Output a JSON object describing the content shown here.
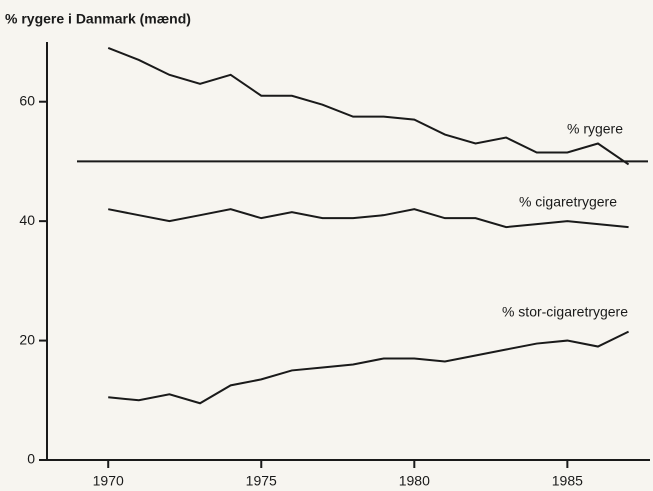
{
  "chart_data": {
    "type": "line",
    "title": "% rygere i Danmark (mænd)",
    "x": [
      1970,
      1971,
      1972,
      1973,
      1974,
      1975,
      1976,
      1977,
      1978,
      1979,
      1980,
      1981,
      1982,
      1983,
      1984,
      1985,
      1986,
      1987
    ],
    "series": [
      {
        "name": "% rygere",
        "color": "#1a1a1a",
        "values": [
          69,
          67,
          64.5,
          63,
          64.5,
          61,
          61,
          59.5,
          57.5,
          57.5,
          57,
          54.5,
          53,
          54,
          51.5,
          51.5,
          53,
          49.5
        ]
      },
      {
        "name": "% cigaretrygere",
        "color": "#1a1a1a",
        "values": [
          42,
          41,
          40,
          41,
          42,
          40.5,
          41.5,
          40.5,
          40.5,
          41,
          42,
          40.5,
          40.5,
          39,
          39.5,
          40,
          39.5,
          39
        ]
      },
      {
        "name": "% stor-cigaretrygere",
        "color": "#1a1a1a",
        "values": [
          10.5,
          10,
          11,
          9.5,
          12.5,
          13.5,
          15,
          15.5,
          16,
          17,
          17,
          16.5,
          17.5,
          18.5,
          19.5,
          20,
          19,
          21.5
        ]
      }
    ],
    "hline": 50,
    "xlim": [
      1968,
      1987.7
    ],
    "xticks": [
      1970,
      1975,
      1980,
      1985
    ],
    "ylim": [
      0,
      70
    ],
    "yticks": [
      0,
      20,
      40,
      60
    ]
  }
}
